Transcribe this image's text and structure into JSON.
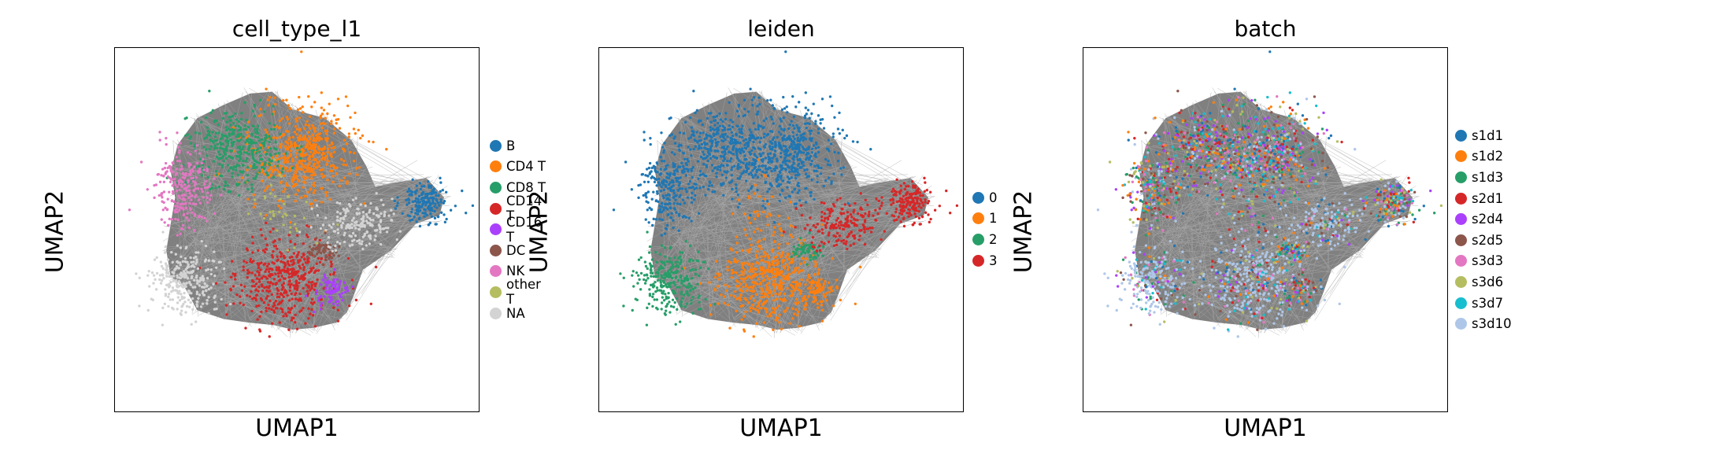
{
  "chart_data": [
    {
      "type": "scatter",
      "title": "cell_type_l1",
      "xlabel": "UMAP1",
      "ylabel": "UMAP2",
      "grid": false,
      "legend_placement": "right",
      "legend": [
        {
          "label": "B",
          "color": "#1f77b4"
        },
        {
          "label": "CD4 T",
          "color": "#ff7f0e"
        },
        {
          "label": "CD8 T",
          "color": "#279e68"
        },
        {
          "label": "CD14 T",
          "color": "#d62728"
        },
        {
          "label": "CD16 T",
          "color": "#aa40fc"
        },
        {
          "label": "DC",
          "color": "#8c564b"
        },
        {
          "label": "NK",
          "color": "#e377c2"
        },
        {
          "label": "other T",
          "color": "#b5bd61"
        },
        {
          "label": "NA",
          "color": "#d3d3d3"
        }
      ]
    },
    {
      "type": "scatter",
      "title": "leiden",
      "xlabel": "UMAP1",
      "ylabel": "UMAP2",
      "grid": false,
      "legend_placement": "right",
      "legend": [
        {
          "label": "0",
          "color": "#1f77b4"
        },
        {
          "label": "1",
          "color": "#ff7f0e"
        },
        {
          "label": "2",
          "color": "#279e68"
        },
        {
          "label": "3",
          "color": "#d62728"
        }
      ]
    },
    {
      "type": "scatter",
      "title": "batch",
      "xlabel": "UMAP1",
      "ylabel": "UMAP2",
      "grid": false,
      "legend_placement": "right",
      "legend": [
        {
          "label": "s1d1",
          "color": "#1f77b4"
        },
        {
          "label": "s1d2",
          "color": "#ff7f0e"
        },
        {
          "label": "s1d3",
          "color": "#279e68"
        },
        {
          "label": "s2d1",
          "color": "#d62728"
        },
        {
          "label": "s2d4",
          "color": "#aa40fc"
        },
        {
          "label": "s2d5",
          "color": "#8c564b"
        },
        {
          "label": "s3d3",
          "color": "#e377c2"
        },
        {
          "label": "s3d6",
          "color": "#b5bd61"
        },
        {
          "label": "s3d7",
          "color": "#17becf"
        },
        {
          "label": "s3d10",
          "color": "#aec7e8"
        }
      ]
    }
  ]
}
